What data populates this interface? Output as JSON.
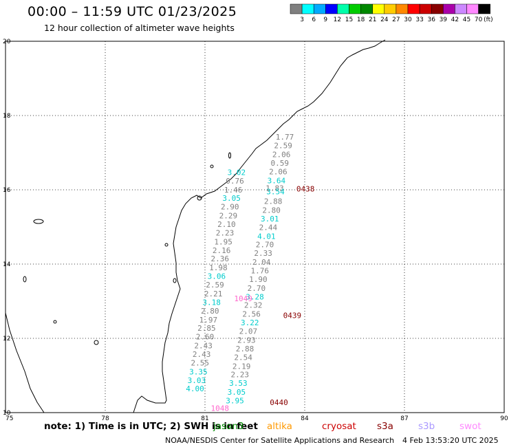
{
  "title": "00:00 – 11:59 UTC 01/23/2025",
  "subtitle": "12 hour collection of altimeter wave heights",
  "legend": {
    "colors": [
      "#808080",
      "#00ffff",
      "#00aaff",
      "#0000ff",
      "#00ffaa",
      "#00cc00",
      "#008800",
      "#ffff00",
      "#ffcc00",
      "#ff8800",
      "#ff0000",
      "#cc0000",
      "#880000",
      "#aa00aa",
      "#cc88ff",
      "#ff88ff",
      "#000000"
    ],
    "labels": [
      "3",
      "6",
      "9",
      "12",
      "15",
      "18",
      "21",
      "24",
      "27",
      "30",
      "33",
      "36",
      "39",
      "42",
      "45",
      "70"
    ],
    "unit": "(ft)"
  },
  "axes": {
    "lon_labels": [
      "75",
      "78",
      "81",
      "84",
      "87",
      "90"
    ],
    "lat_labels": [
      "20",
      "18",
      "16",
      "14",
      "12",
      "10"
    ],
    "lon_range": [
      75,
      90
    ],
    "lat_range": [
      10,
      20
    ]
  },
  "tracks": [
    {
      "time": "0438",
      "time_color": "#880000",
      "points": [
        {
          "lon": 83.4,
          "lat": 17.35,
          "v": "1.77",
          "c": "#808080"
        },
        {
          "lon": 83.35,
          "lat": 17.12,
          "v": "2.59",
          "c": "#808080"
        },
        {
          "lon": 83.3,
          "lat": 16.88,
          "v": "2.06",
          "c": "#808080"
        },
        {
          "lon": 83.25,
          "lat": 16.65,
          "v": "0.59",
          "c": "#808080"
        },
        {
          "lon": 83.2,
          "lat": 16.42,
          "v": "2.06",
          "c": "#808080"
        },
        {
          "lon": 83.15,
          "lat": 16.18,
          "v": "3.64",
          "c": "#00cccc"
        },
        {
          "lon": 83.1,
          "lat": 15.97,
          "v": "1.83",
          "c": "#808080"
        },
        {
          "lon": 83.12,
          "lat": 15.88,
          "v": "3.54",
          "c": "#00cccc"
        },
        {
          "lon": 83.05,
          "lat": 15.62,
          "v": "2.88",
          "c": "#808080"
        },
        {
          "lon": 83.0,
          "lat": 15.38,
          "v": "2.80",
          "c": "#808080"
        },
        {
          "lon": 82.95,
          "lat": 15.15,
          "v": "3.01",
          "c": "#00cccc"
        },
        {
          "lon": 82.9,
          "lat": 14.92,
          "v": "2.44",
          "c": "#808080"
        },
        {
          "lon": 82.85,
          "lat": 14.68,
          "v": "4.01",
          "c": "#00cccc"
        },
        {
          "lon": 82.8,
          "lat": 14.45,
          "v": "2.70",
          "c": "#808080"
        },
        {
          "lon": 82.75,
          "lat": 14.22,
          "v": "2.33",
          "c": "#808080"
        },
        {
          "lon": 82.7,
          "lat": 13.98,
          "v": "2.04",
          "c": "#808080"
        },
        {
          "lon": 82.65,
          "lat": 13.75,
          "v": "1.76",
          "c": "#808080"
        },
        {
          "lon": 82.6,
          "lat": 13.52,
          "v": "1.90",
          "c": "#808080"
        },
        {
          "lon": 82.55,
          "lat": 13.28,
          "v": "2.70",
          "c": "#808080"
        },
        {
          "lon": 82.5,
          "lat": 13.05,
          "v": "3.28",
          "c": "#00cccc"
        },
        {
          "lon": 82.45,
          "lat": 12.82,
          "v": "2.32",
          "c": "#808080"
        },
        {
          "lon": 82.4,
          "lat": 12.58,
          "v": "2.56",
          "c": "#808080"
        },
        {
          "lon": 82.35,
          "lat": 12.35,
          "v": "3.22",
          "c": "#00cccc"
        },
        {
          "lon": 82.3,
          "lat": 12.12,
          "v": "2.07",
          "c": "#808080"
        },
        {
          "lon": 82.25,
          "lat": 11.88,
          "v": "2.93",
          "c": "#808080"
        },
        {
          "lon": 82.2,
          "lat": 11.65,
          "v": "2.88",
          "c": "#808080"
        },
        {
          "lon": 82.15,
          "lat": 11.42,
          "v": "2.54",
          "c": "#808080"
        },
        {
          "lon": 82.1,
          "lat": 11.18,
          "v": "2.19",
          "c": "#808080"
        },
        {
          "lon": 82.05,
          "lat": 10.95,
          "v": "2.23",
          "c": "#808080"
        },
        {
          "lon": 82.0,
          "lat": 10.72,
          "v": "3.53",
          "c": "#00cccc"
        },
        {
          "lon": 81.95,
          "lat": 10.48,
          "v": "3.05",
          "c": "#00cccc"
        },
        {
          "lon": 81.9,
          "lat": 10.25,
          "v": "3.95",
          "c": "#00cccc"
        }
      ]
    },
    {
      "time": "0439",
      "time_color": "#880000",
      "points": [
        {
          "lon": 81.95,
          "lat": 16.4,
          "v": "3.02",
          "c": "#00cccc"
        },
        {
          "lon": 81.9,
          "lat": 16.17,
          "v": "0.76",
          "c": "#808080"
        },
        {
          "lon": 81.85,
          "lat": 15.93,
          "v": "1.46",
          "c": "#808080"
        },
        {
          "lon": 81.8,
          "lat": 15.7,
          "v": "3.05",
          "c": "#00cccc"
        },
        {
          "lon": 81.75,
          "lat": 15.47,
          "v": "2.90",
          "c": "#808080"
        },
        {
          "lon": 81.7,
          "lat": 15.23,
          "v": "2.29",
          "c": "#808080"
        },
        {
          "lon": 81.65,
          "lat": 15.0,
          "v": "2.10",
          "c": "#808080"
        },
        {
          "lon": 81.6,
          "lat": 14.77,
          "v": "2.23",
          "c": "#808080"
        },
        {
          "lon": 81.55,
          "lat": 14.53,
          "v": "1.95",
          "c": "#808080"
        },
        {
          "lon": 81.5,
          "lat": 14.3,
          "v": "2.16",
          "c": "#808080"
        },
        {
          "lon": 81.45,
          "lat": 14.07,
          "v": "2.36",
          "c": "#808080"
        },
        {
          "lon": 81.4,
          "lat": 13.83,
          "v": "1.98",
          "c": "#808080"
        },
        {
          "lon": 81.35,
          "lat": 13.6,
          "v": "3.06",
          "c": "#00cccc"
        },
        {
          "lon": 81.3,
          "lat": 13.37,
          "v": "2.59",
          "c": "#808080"
        },
        {
          "lon": 81.25,
          "lat": 13.13,
          "v": "2.21",
          "c": "#808080"
        },
        {
          "lon": 81.2,
          "lat": 12.9,
          "v": "3.18",
          "c": "#00cccc"
        },
        {
          "lon": 81.15,
          "lat": 12.67,
          "v": "2.80",
          "c": "#808080"
        },
        {
          "lon": 81.1,
          "lat": 12.43,
          "v": "1.97",
          "c": "#808080"
        },
        {
          "lon": 81.05,
          "lat": 12.2,
          "v": "2.85",
          "c": "#808080"
        },
        {
          "lon": 81.0,
          "lat": 11.97,
          "v": "2.60",
          "c": "#808080"
        },
        {
          "lon": 80.95,
          "lat": 11.73,
          "v": "2.43",
          "c": "#808080"
        },
        {
          "lon": 80.9,
          "lat": 11.5,
          "v": "2.43",
          "c": "#808080"
        },
        {
          "lon": 80.85,
          "lat": 11.27,
          "v": "2.55",
          "c": "#808080"
        },
        {
          "lon": 80.8,
          "lat": 11.03,
          "v": "3.35",
          "c": "#00cccc"
        },
        {
          "lon": 80.75,
          "lat": 10.8,
          "v": "3.03",
          "c": "#00cccc"
        },
        {
          "lon": 80.7,
          "lat": 10.57,
          "v": "4.00",
          "c": "#00cccc"
        }
      ]
    },
    {
      "time": "0440",
      "time_color": "#880000",
      "points": []
    }
  ],
  "pink_labels": [
    {
      "lon": 82.15,
      "lat": 13.0,
      "v": "1049"
    },
    {
      "lon": 81.45,
      "lat": 10.05,
      "v": "1048"
    }
  ],
  "time_labels": [
    {
      "lon": 83.75,
      "lat": 15.95,
      "v": "0438"
    },
    {
      "lon": 83.35,
      "lat": 12.55,
      "v": "0439"
    },
    {
      "lon": 82.95,
      "lat": 10.2,
      "v": "0440"
    }
  ],
  "footnote": {
    "prefix": "note: 1) Time is in UTC; 2) SWH is in feet",
    "satellites": [
      {
        "name": "jason3",
        "color": "#008800"
      },
      {
        "name": "altika",
        "color": "#ff9900"
      },
      {
        "name": "cryosat",
        "color": "#cc0000"
      },
      {
        "name": "s3a",
        "color": "#880000"
      },
      {
        "name": "s3b",
        "color": "#aa99ff"
      },
      {
        "name": "swot",
        "color": "#ff88ff"
      }
    ]
  },
  "credit": "NOAA/NESDIS Center for Satellite Applications and Research",
  "stamp": "4 Feb 13:53:20 UTC 2025"
}
